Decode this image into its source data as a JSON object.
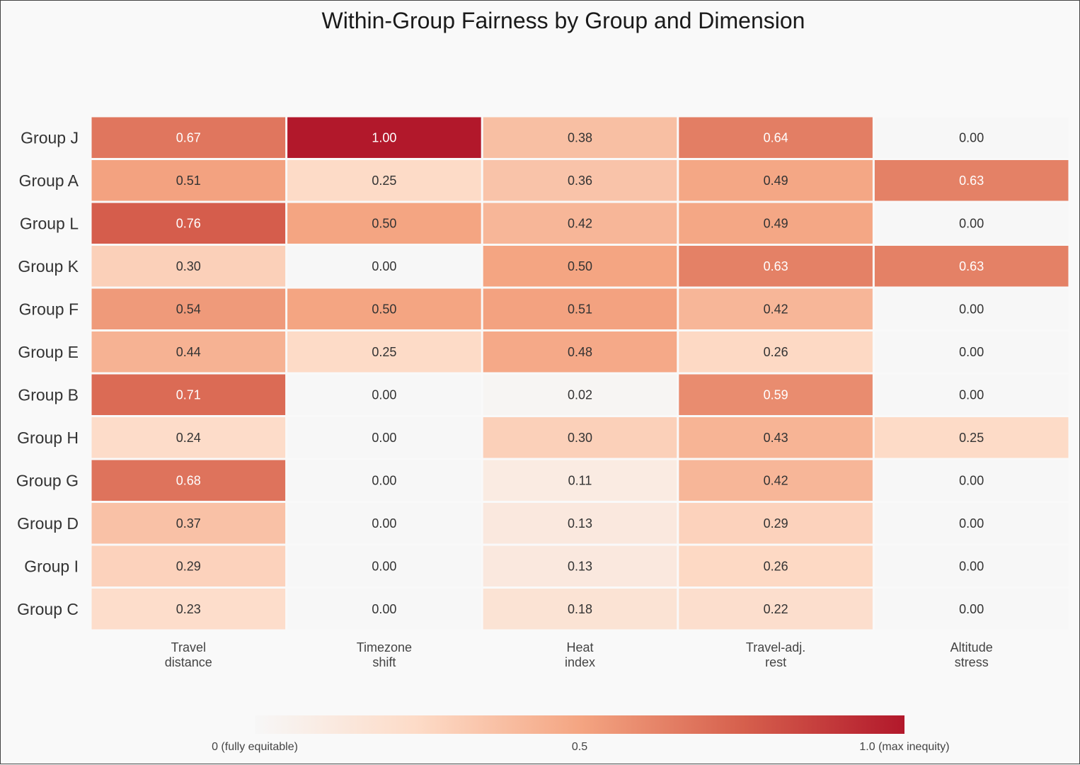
{
  "chart_data": {
    "type": "heatmap",
    "title": "Within-Group Fairness by Group and Dimension",
    "rows": [
      "Group J",
      "Group A",
      "Group L",
      "Group K",
      "Group F",
      "Group E",
      "Group B",
      "Group H",
      "Group G",
      "Group D",
      "Group I",
      "Group C"
    ],
    "columns": [
      [
        "Travel",
        "distance"
      ],
      [
        "Timezone",
        "shift"
      ],
      [
        "Heat",
        "index"
      ],
      [
        "Travel-adj.",
        "rest"
      ],
      [
        "Altitude",
        "stress"
      ]
    ],
    "values": [
      [
        0.67,
        1.0,
        0.38,
        0.64,
        0.0
      ],
      [
        0.51,
        0.25,
        0.36,
        0.49,
        0.63
      ],
      [
        0.76,
        0.5,
        0.42,
        0.49,
        0.0
      ],
      [
        0.3,
        0.0,
        0.5,
        0.63,
        0.63
      ],
      [
        0.54,
        0.5,
        0.51,
        0.42,
        0.0
      ],
      [
        0.44,
        0.25,
        0.48,
        0.26,
        0.0
      ],
      [
        0.71,
        0.0,
        0.02,
        0.59,
        0.0
      ],
      [
        0.24,
        0.0,
        0.3,
        0.43,
        0.25
      ],
      [
        0.68,
        0.0,
        0.11,
        0.42,
        0.0
      ],
      [
        0.37,
        0.0,
        0.13,
        0.29,
        0.0
      ],
      [
        0.29,
        0.0,
        0.13,
        0.26,
        0.0
      ],
      [
        0.23,
        0.0,
        0.18,
        0.22,
        0.0
      ]
    ],
    "value_format_decimals": 2,
    "color_scale": {
      "min": 0,
      "max": 1,
      "stops": [
        "#f7f7f7",
        "#fddbc7",
        "#f4a582",
        "#d6604d",
        "#b2182b"
      ]
    },
    "colorbar": {
      "labels": [
        "0  (fully equitable)",
        "0.5",
        "1.0  (max inequity)"
      ]
    }
  }
}
